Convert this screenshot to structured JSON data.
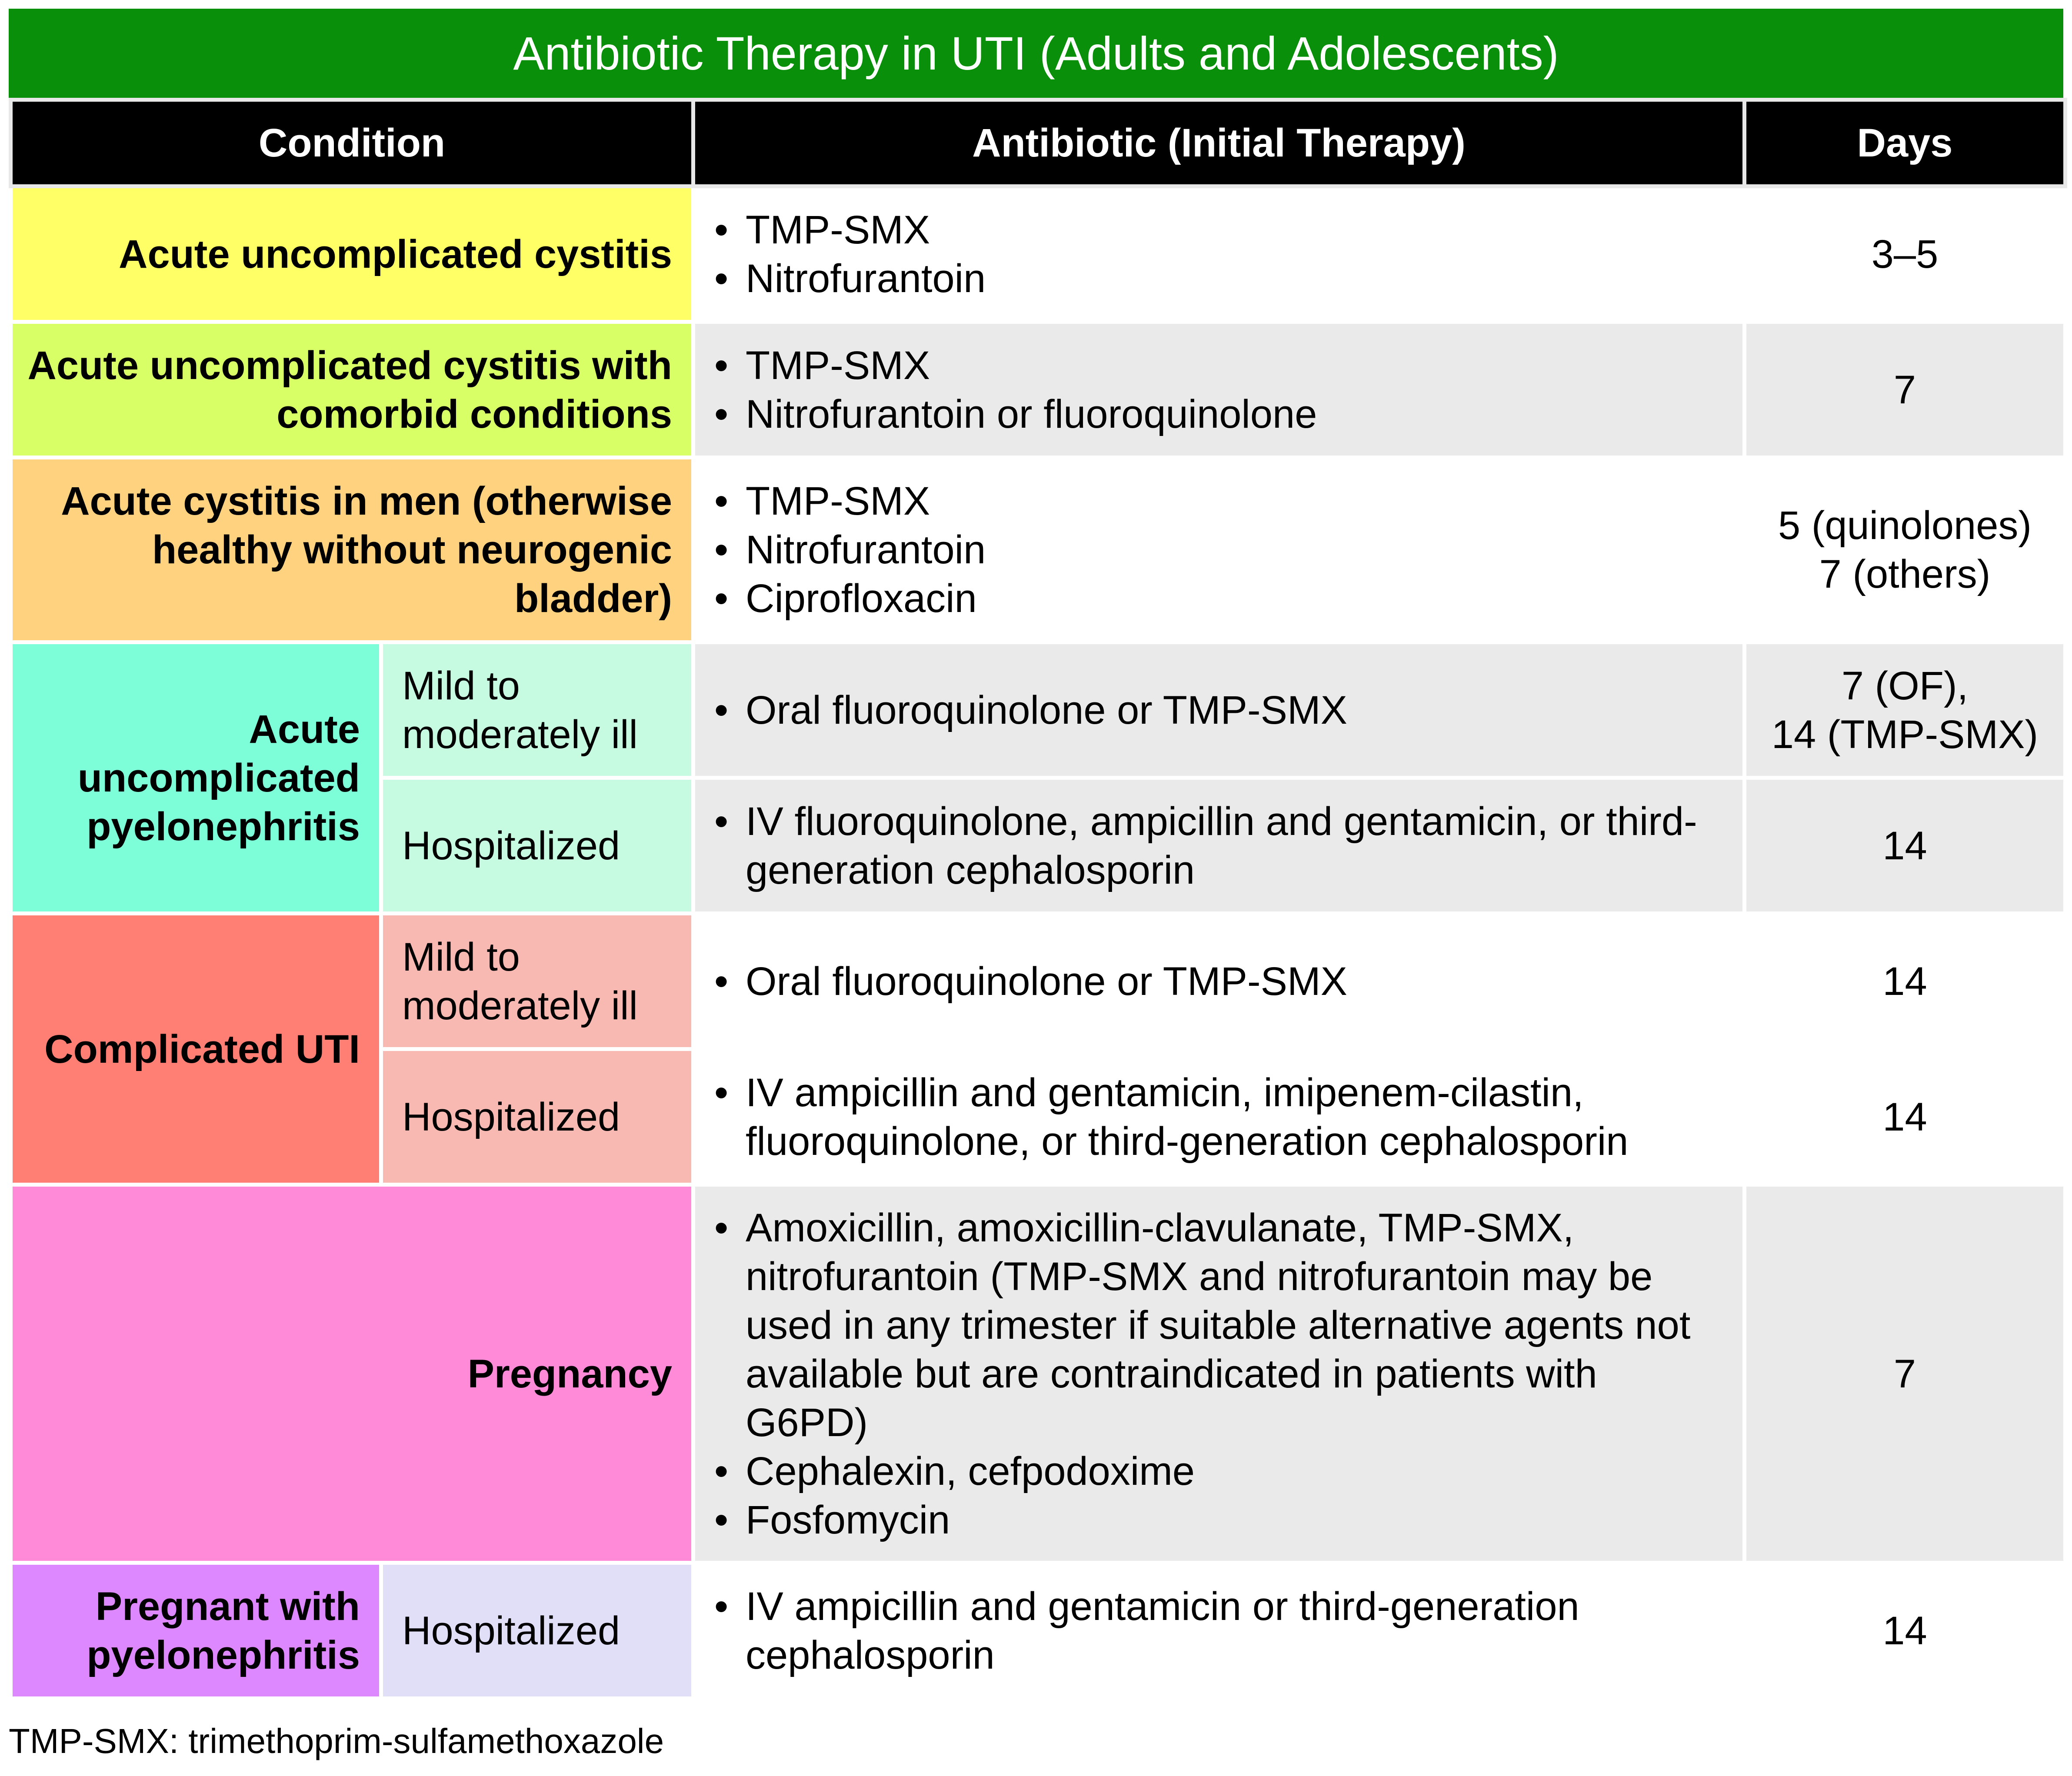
{
  "title": "Antibiotic Therapy in UTI (Adults and Adolescents)",
  "headers": {
    "condition": "Condition",
    "antibiotic": "Antibiotic (Initial Therapy)",
    "days": "Days"
  },
  "rows": [
    {
      "condition": "Acute uncomplicated cystitis",
      "antibiotics": [
        "TMP-SMX",
        "Nitrofurantoin"
      ],
      "days": "3–5",
      "color": "#ffff66"
    },
    {
      "condition": "Acute uncomplicated cystitis with comorbid conditions",
      "antibiotics": [
        "TMP-SMX",
        "Nitrofurantoin or fluoroquinolone"
      ],
      "days": "7",
      "color": "#d9ff66"
    },
    {
      "condition": "Acute cystitis in men (otherwise healthy without neurogenic bladder)",
      "antibiotics": [
        "TMP-SMX",
        "Nitrofurantoin",
        "Ciprofloxacin"
      ],
      "days_lines": [
        "5 (quinolones)",
        "7 (others)"
      ],
      "color": "#ffd27f"
    },
    {
      "condition": "Acute uncomplicated pyelonephritis",
      "color": "#7dfdd8",
      "sub_color": "#c6fbe1",
      "subrows": [
        {
          "severity": "Mild to moderately ill",
          "antibiotics": [
            "Oral fluoroquinolone or TMP-SMX"
          ],
          "days_lines": [
            "7 (OF),",
            "14 (TMP-SMX)"
          ]
        },
        {
          "severity": "Hospitalized",
          "antibiotics": [
            "IV fluoroquinolone, ampicillin and gentamicin, or third-generation cephalosporin"
          ],
          "days": "14"
        }
      ]
    },
    {
      "condition": "Complicated UTI",
      "color": "#ff7f75",
      "sub_color": "#f7b9b1",
      "subrows": [
        {
          "severity": "Mild to moderately ill",
          "antibiotics": [
            "Oral fluoroquinolone or TMP-SMX"
          ],
          "days": "14"
        },
        {
          "severity": "Hospitalized",
          "antibiotics": [
            "IV ampicillin and gentamicin, imipenem-cilastin, fluoroquinolone, or third-generation cephalosporin"
          ],
          "days": "14"
        }
      ]
    },
    {
      "condition": "Pregnancy",
      "antibiotics": [
        "Amoxicillin, amoxicillin-clavulanate, TMP-SMX, nitrofurantoin (TMP-SMX and nitrofurantoin may be used in any trimester if suitable alternative agents not available but are contraindicated in patients with G6PD)",
        "Cephalexin, cefpodoxime",
        "Fosfomycin"
      ],
      "days": "7",
      "color": "#ff8ad8"
    },
    {
      "condition": "Pregnant with pyelonephritis",
      "severity": "Hospitalized",
      "antibiotics": [
        "IV ampicillin and gentamicin or third-generation cephalosporin"
      ],
      "days": "14",
      "color": "#dd88ff",
      "sub_color": "#e1def8"
    }
  ],
  "footnote": "TMP-SMX: trimethoprim-sulfamethoxazole"
}
